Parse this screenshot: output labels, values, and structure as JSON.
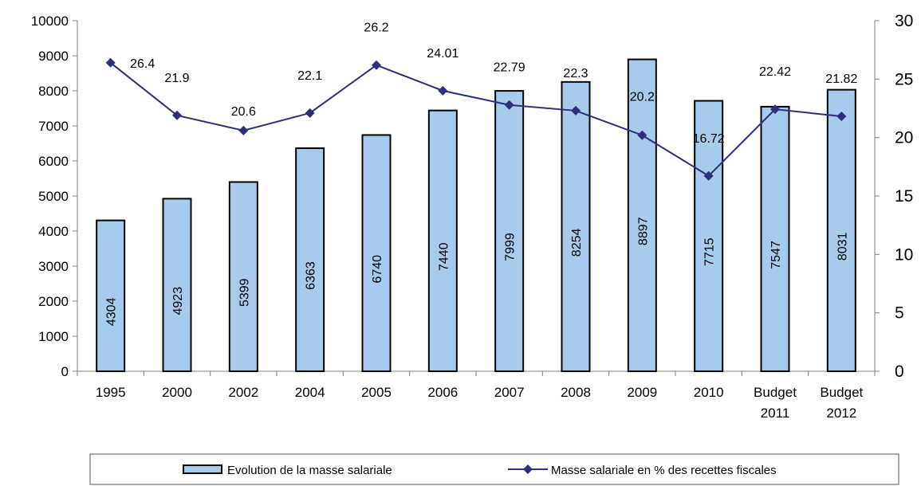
{
  "chart_data": {
    "type": "bar",
    "categories": [
      "1995",
      "2000",
      "2002",
      "2004",
      "2005",
      "2006",
      "2007",
      "2008",
      "2009",
      "2010",
      "Budget 2011",
      "Budget 2012"
    ],
    "series": [
      {
        "name": "Evolution de la masse salariale",
        "type": "bar",
        "axis": "left",
        "values": [
          4304,
          4923,
          5399,
          6363,
          6740,
          7440,
          7999,
          8254,
          8897,
          7715,
          7547,
          8031
        ],
        "labels": [
          "4304",
          "4923",
          "5399",
          "6363",
          "6740",
          "7440",
          "7999",
          "8254",
          "8897",
          "7715",
          "7547",
          "8031"
        ],
        "color": "#a6cbec"
      },
      {
        "name": "Masse salariale en % des recettes fiscales",
        "type": "line",
        "axis": "right",
        "values": [
          26.4,
          21.9,
          20.6,
          22.1,
          26.2,
          24.01,
          22.79,
          22.3,
          20.2,
          16.72,
          22.42,
          21.82
        ],
        "labels": [
          "26.4",
          "21.9",
          "20.6",
          "22.1",
          "26.2",
          "24.01",
          "22.79",
          "22.3",
          "20.2",
          "16.72",
          "22.42",
          "21.82"
        ],
        "color": "#2b2f7c"
      }
    ],
    "y_left": {
      "min": 0,
      "max": 10000,
      "ticks": [
        "0",
        "1000",
        "2000",
        "3000",
        "4000",
        "5000",
        "6000",
        "7000",
        "8000",
        "9000",
        "10000"
      ]
    },
    "y_right": {
      "min": 0,
      "max": 30,
      "ticks": [
        "0",
        "5",
        "10",
        "15",
        "20",
        "25",
        "30"
      ]
    },
    "grid": false,
    "legend_position": "bottom"
  }
}
